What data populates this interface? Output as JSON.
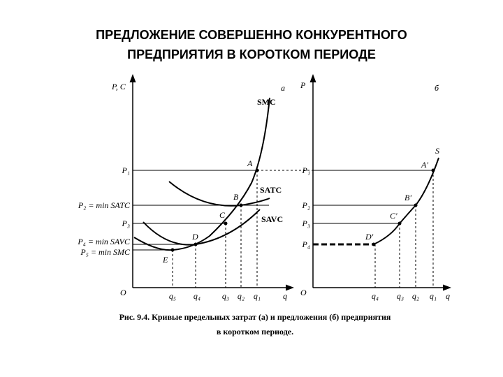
{
  "title": {
    "lines": [
      "ПРЕДЛОЖЕНИЕ СОВЕРШЕННО КОНКУРЕНТНОГО",
      "ПРЕДПРИЯТИЯ В КОРОТКОМ ПЕРИОДЕ"
    ]
  },
  "panel_a": {
    "panel": "а",
    "y_axis": "P, C",
    "x_axis": "q",
    "origin": "O",
    "y_labels": [
      "P₁",
      "P₂ = min SATC",
      "P₃",
      "P₄ = min SAVC",
      "P₅ = min SMC"
    ],
    "x_labels": [
      "q₅",
      "q₄",
      "q₃",
      "q₂",
      "q₁"
    ],
    "curves": [
      "SMC",
      "SATC",
      "SAVC"
    ],
    "points": [
      "A",
      "B",
      "C",
      "D",
      "E"
    ]
  },
  "panel_b": {
    "panel": "б",
    "y_axis": "P",
    "x_axis": "q",
    "origin": "O",
    "y_labels": [
      "P₁",
      "P₂",
      "P₃",
      "P₄"
    ],
    "x_labels": [
      "q₄",
      "q₃",
      "q₂",
      "q₁"
    ],
    "curves": [
      "S"
    ],
    "points": [
      "A'",
      "B'",
      "C'",
      "D'"
    ]
  },
  "caption": {
    "lines": [
      "Рис. 9.4. Кривые предельных затрат (а) и предложения (б) предприятия",
      "в коротком периоде."
    ]
  }
}
